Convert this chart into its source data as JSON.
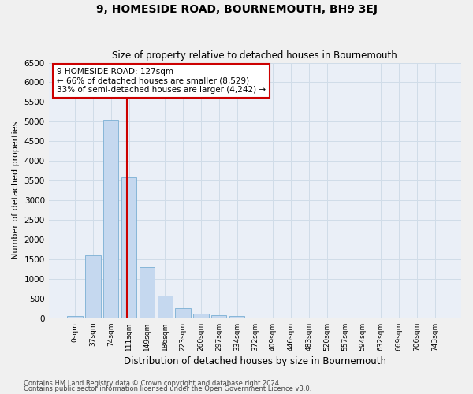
{
  "title": "9, HOMESIDE ROAD, BOURNEMOUTH, BH9 3EJ",
  "subtitle": "Size of property relative to detached houses in Bournemouth",
  "xlabel": "Distribution of detached houses by size in Bournemouth",
  "ylabel": "Number of detached properties",
  "footer_line1": "Contains HM Land Registry data © Crown copyright and database right 2024.",
  "footer_line2": "Contains public sector information licensed under the Open Government Licence v3.0.",
  "bar_labels": [
    "0sqm",
    "37sqm",
    "74sqm",
    "111sqm",
    "149sqm",
    "186sqm",
    "223sqm",
    "260sqm",
    "297sqm",
    "334sqm",
    "372sqm",
    "409sqm",
    "446sqm",
    "483sqm",
    "520sqm",
    "557sqm",
    "594sqm",
    "632sqm",
    "669sqm",
    "706sqm",
    "743sqm"
  ],
  "bar_values": [
    50,
    1600,
    5050,
    3580,
    1300,
    570,
    260,
    115,
    85,
    50,
    0,
    0,
    0,
    0,
    0,
    0,
    0,
    0,
    0,
    0,
    0
  ],
  "bar_color": "#c5d8ef",
  "bar_edge_color": "#7aafd4",
  "ylim": [
    0,
    6500
  ],
  "yticks": [
    0,
    500,
    1000,
    1500,
    2000,
    2500,
    3000,
    3500,
    4000,
    4500,
    5000,
    5500,
    6000,
    6500
  ],
  "property_line_x": 2.87,
  "property_line_color": "#cc0000",
  "annotation_line1": "9 HOMESIDE ROAD: 127sqm",
  "annotation_line2": "← 66% of detached houses are smaller (8,529)",
  "annotation_line3": "33% of semi-detached houses are larger (4,242) →",
  "annotation_box_color": "#ffffff",
  "annotation_box_edge_color": "#cc0000",
  "grid_color": "#d0dce8",
  "bg_color": "#eaeff7",
  "fig_bg_color": "#f0f0f0",
  "title_fontsize": 10,
  "subtitle_fontsize": 8.5
}
